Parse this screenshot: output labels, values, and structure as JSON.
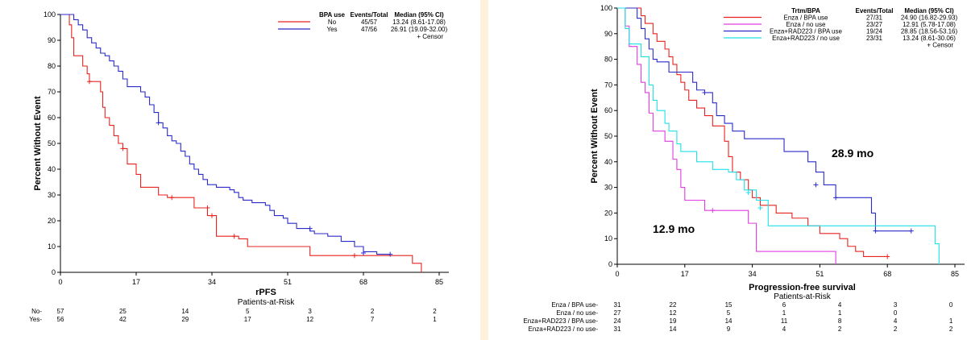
{
  "colors": {
    "red": "#e8231f",
    "blue": "#2b2bc9",
    "magenta": "#e03ce0",
    "cyan": "#1fe0e8",
    "divider": "#fdf0dc"
  },
  "chart_data": [
    {
      "type": "line",
      "xlabel": "rPFS",
      "ylabel": "Percent Without Event",
      "xlim": [
        0,
        85
      ],
      "ylim": [
        0,
        100
      ],
      "xticks": [
        0,
        17,
        34,
        51,
        68,
        85
      ],
      "yticks": [
        0,
        10,
        20,
        30,
        40,
        50,
        60,
        70,
        80,
        90,
        100
      ],
      "legend": {
        "headers": [
          "BPA use",
          "Events/Total",
          "Median (95% CI)"
        ],
        "censor_label": "+ Censor",
        "placement": "top-right"
      },
      "series": [
        {
          "name": "No",
          "color": "#e8231f",
          "events_total": "45/57",
          "median": "13.24 (8.61-17.08)",
          "points": [
            [
              0,
              100
            ],
            [
              2,
              96
            ],
            [
              2.5,
              91
            ],
            [
              3,
              84
            ],
            [
              5,
              80
            ],
            [
              6,
              77
            ],
            [
              6.5,
              74
            ],
            [
              9,
              70
            ],
            [
              9.5,
              64
            ],
            [
              10,
              60
            ],
            [
              11,
              57
            ],
            [
              12,
              53
            ],
            [
              13,
              50
            ],
            [
              14,
              48
            ],
            [
              15,
              42
            ],
            [
              17,
              38
            ],
            [
              18,
              33
            ],
            [
              22,
              30
            ],
            [
              24,
              29
            ],
            [
              30,
              25
            ],
            [
              33,
              22
            ],
            [
              35,
              14
            ],
            [
              40,
              13
            ],
            [
              42,
              10
            ],
            [
              56,
              6.5
            ],
            [
              78,
              6.5
            ],
            [
              79,
              3.5
            ],
            [
              81,
              0
            ]
          ],
          "censors": [
            [
              6.5,
              74
            ],
            [
              14,
              48
            ],
            [
              25,
              29
            ],
            [
              33,
              25
            ],
            [
              34,
              22
            ],
            [
              39,
              14
            ],
            [
              66,
              6.5
            ]
          ]
        },
        {
          "name": "Yes",
          "color": "#2b2bc9",
          "events_total": "47/56",
          "median": "26.91 (19.09-32.00)",
          "points": [
            [
              0,
              100
            ],
            [
              3,
              98
            ],
            [
              4,
              96
            ],
            [
              5,
              94
            ],
            [
              6,
              91
            ],
            [
              7,
              89
            ],
            [
              8,
              87
            ],
            [
              9,
              85
            ],
            [
              10,
              84
            ],
            [
              11,
              82
            ],
            [
              12,
              80
            ],
            [
              13,
              78
            ],
            [
              14,
              75
            ],
            [
              15,
              72
            ],
            [
              18,
              70
            ],
            [
              19,
              68
            ],
            [
              20,
              65
            ],
            [
              21,
              62
            ],
            [
              22,
              58
            ],
            [
              23,
              56
            ],
            [
              24,
              53
            ],
            [
              25,
              51
            ],
            [
              26,
              50
            ],
            [
              27,
              47
            ],
            [
              28,
              45
            ],
            [
              29,
              42
            ],
            [
              30,
              40
            ],
            [
              31,
              38
            ],
            [
              32,
              36
            ],
            [
              33,
              34
            ],
            [
              35,
              33
            ],
            [
              38,
              32
            ],
            [
              39,
              31
            ],
            [
              40,
              29
            ],
            [
              41,
              28
            ],
            [
              43,
              27
            ],
            [
              46,
              26
            ],
            [
              47,
              24
            ],
            [
              48,
              22
            ],
            [
              50,
              21
            ],
            [
              51,
              19
            ],
            [
              53,
              17
            ],
            [
              56,
              16
            ],
            [
              57,
              15
            ],
            [
              60,
              14
            ],
            [
              63,
              12
            ],
            [
              66,
              10
            ],
            [
              68,
              8
            ],
            [
              71,
              7
            ],
            [
              74,
              7
            ]
          ],
          "censors": [
            [
              22,
              58
            ],
            [
              56,
              17
            ],
            [
              68,
              7.5
            ],
            [
              74,
              7
            ]
          ]
        }
      ],
      "risk_table": {
        "title": "Patients-at-Risk",
        "rows": [
          {
            "label": "No-",
            "values": [
              "57",
              "25",
              "14",
              "5",
              "3",
              "2",
              "2"
            ]
          },
          {
            "label": "Yes-",
            "values": [
              "56",
              "42",
              "29",
              "17",
              "12",
              "7",
              "1"
            ]
          }
        ]
      }
    },
    {
      "type": "line",
      "xlabel": "Progression-free survival",
      "ylabel": "Percent Without Event",
      "xlim": [
        0,
        85
      ],
      "ylim": [
        0,
        100
      ],
      "xticks": [
        0,
        17,
        34,
        51,
        68,
        85
      ],
      "yticks": [
        0,
        10,
        20,
        30,
        40,
        50,
        60,
        70,
        80,
        90,
        100
      ],
      "legend": {
        "headers": [
          "Trtm/BPA",
          "Events/Total",
          "Median (95% CI)"
        ],
        "censor_label": "+ Censor",
        "placement": "top-right"
      },
      "annotations": [
        "28.9 mo",
        "12.9 mo"
      ],
      "series": [
        {
          "name": "Enza / BPA use",
          "color": "#e8231f",
          "events_total": "27/31",
          "median": "24.90 (16.82-29.93)",
          "points": [
            [
              0,
              100
            ],
            [
              6,
              97
            ],
            [
              7,
              94
            ],
            [
              9,
              90
            ],
            [
              10,
              87
            ],
            [
              12,
              84
            ],
            [
              13,
              81
            ],
            [
              14,
              78
            ],
            [
              15,
              74
            ],
            [
              16,
              71
            ],
            [
              17,
              68
            ],
            [
              18,
              64
            ],
            [
              20,
              61
            ],
            [
              22,
              58
            ],
            [
              24,
              54
            ],
            [
              27,
              48
            ],
            [
              28,
              42
            ],
            [
              29,
              36
            ],
            [
              31,
              33
            ],
            [
              33,
              29
            ],
            [
              34,
              26
            ],
            [
              36,
              23
            ],
            [
              40,
              20
            ],
            [
              44,
              18
            ],
            [
              48,
              15
            ],
            [
              51,
              12
            ],
            [
              56,
              10
            ],
            [
              58,
              7
            ],
            [
              60,
              5
            ],
            [
              62,
              3
            ],
            [
              68,
              3
            ]
          ],
          "censors": [
            [
              68,
              3
            ]
          ]
        },
        {
          "name": "Enza / no use",
          "color": "#e03ce0",
          "events_total": "23/27",
          "median": "12.91 (5.78-17.08)",
          "points": [
            [
              0,
              100
            ],
            [
              2,
              93
            ],
            [
              3,
              85
            ],
            [
              5,
              78
            ],
            [
              6,
              71
            ],
            [
              7,
              67
            ],
            [
              8,
              59
            ],
            [
              9,
              52
            ],
            [
              12,
              48
            ],
            [
              14,
              41
            ],
            [
              15,
              37
            ],
            [
              16,
              30
            ],
            [
              17,
              25
            ],
            [
              22,
              21
            ],
            [
              33,
              16
            ],
            [
              35,
              5
            ],
            [
              55,
              0
            ]
          ],
          "censors": [
            [
              24,
              21
            ]
          ]
        },
        {
          "name": "Enza+RAD223 / BPA use",
          "color": "#2b2bc9",
          "events_total": "19/24",
          "median": "28.85 (18.56-53.16)",
          "points": [
            [
              0,
              100
            ],
            [
              5,
              96
            ],
            [
              6,
              92
            ],
            [
              7,
              88
            ],
            [
              8,
              84
            ],
            [
              9,
              80
            ],
            [
              10,
              79
            ],
            [
              13,
              75
            ],
            [
              19,
              71
            ],
            [
              20,
              68
            ],
            [
              22,
              67
            ],
            [
              24,
              63
            ],
            [
              25,
              58
            ],
            [
              27,
              55
            ],
            [
              29,
              52
            ],
            [
              32,
              49
            ],
            [
              42,
              44
            ],
            [
              48,
              40
            ],
            [
              50,
              36
            ],
            [
              52,
              31
            ],
            [
              55,
              26
            ],
            [
              61,
              26
            ],
            [
              64,
              20
            ],
            [
              65,
              13
            ],
            [
              74,
              13
            ]
          ],
          "censors": [
            [
              22,
              67
            ],
            [
              50,
              31
            ],
            [
              55,
              26
            ],
            [
              65,
              13
            ],
            [
              74,
              13
            ]
          ]
        },
        {
          "name": "Enza+RAD223 / no use",
          "color": "#1fe0e8",
          "events_total": "23/31",
          "median": "13.24 (8.61-30.06)",
          "points": [
            [
              0,
              100
            ],
            [
              2,
              92
            ],
            [
              3,
              86
            ],
            [
              6,
              81
            ],
            [
              8,
              70
            ],
            [
              9,
              64
            ],
            [
              10,
              60
            ],
            [
              12,
              55
            ],
            [
              13,
              52
            ],
            [
              15,
              47
            ],
            [
              16,
              44
            ],
            [
              20,
              40
            ],
            [
              24,
              37
            ],
            [
              28,
              36
            ],
            [
              30,
              33
            ],
            [
              32,
              29
            ],
            [
              35,
              25
            ],
            [
              38,
              15
            ],
            [
              45,
              15
            ],
            [
              78,
              15
            ],
            [
              80,
              8
            ],
            [
              81,
              0
            ]
          ],
          "censors": [
            [
              33,
              28
            ],
            [
              36,
              22
            ]
          ]
        }
      ],
      "risk_table": {
        "title": "Patients-at-Risk",
        "rows": [
          {
            "label": "Enza / BPA use-",
            "values": [
              "31",
              "22",
              "15",
              "6",
              "4",
              "3",
              "0"
            ]
          },
          {
            "label": "Enza / no use-",
            "values": [
              "27",
              "12",
              "5",
              "1",
              "1",
              "0",
              ""
            ]
          },
          {
            "label": "Enza+RAD223 / BPA use-",
            "values": [
              "24",
              "19",
              "14",
              "11",
              "8",
              "4",
              "1"
            ]
          },
          {
            "label": "Enza+RAD223 / no use-",
            "values": [
              "31",
              "14",
              "9",
              "4",
              "2",
              "2",
              "2"
            ]
          }
        ]
      }
    }
  ]
}
